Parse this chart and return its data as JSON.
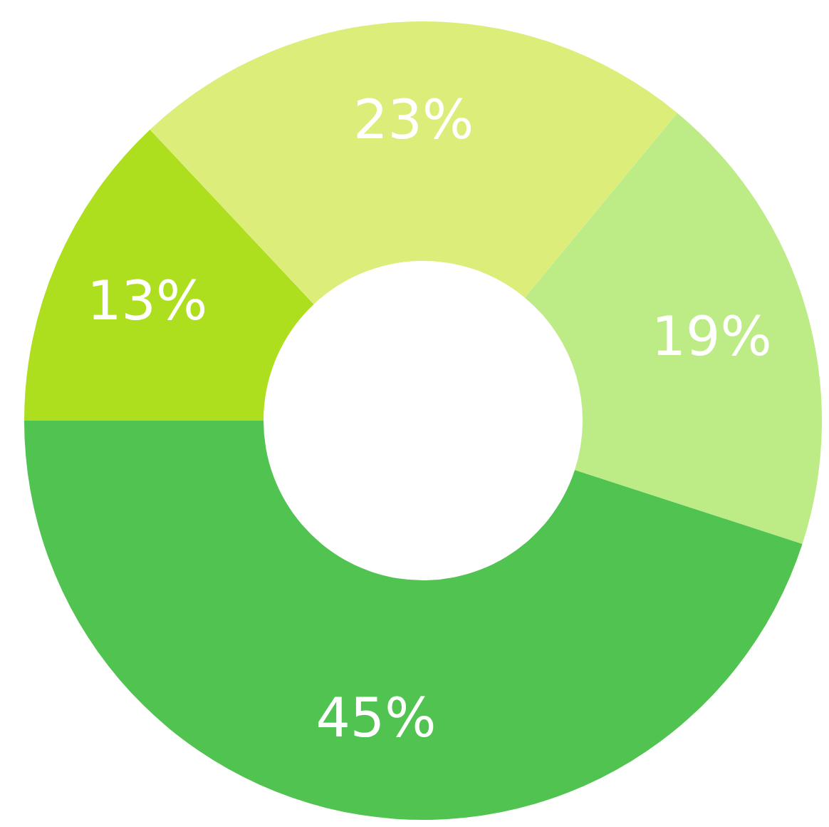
{
  "chart_data": {
    "type": "donut",
    "categories": [
      null,
      null,
      null,
      null
    ],
    "values": [
      13,
      23,
      19,
      45
    ],
    "colors": [
      "#addf1f",
      "#dcee79",
      "#bdec86",
      "#50c350"
    ],
    "value_labels": [
      "13%",
      "23%",
      "19%",
      "45%"
    ],
    "legend": false
  }
}
